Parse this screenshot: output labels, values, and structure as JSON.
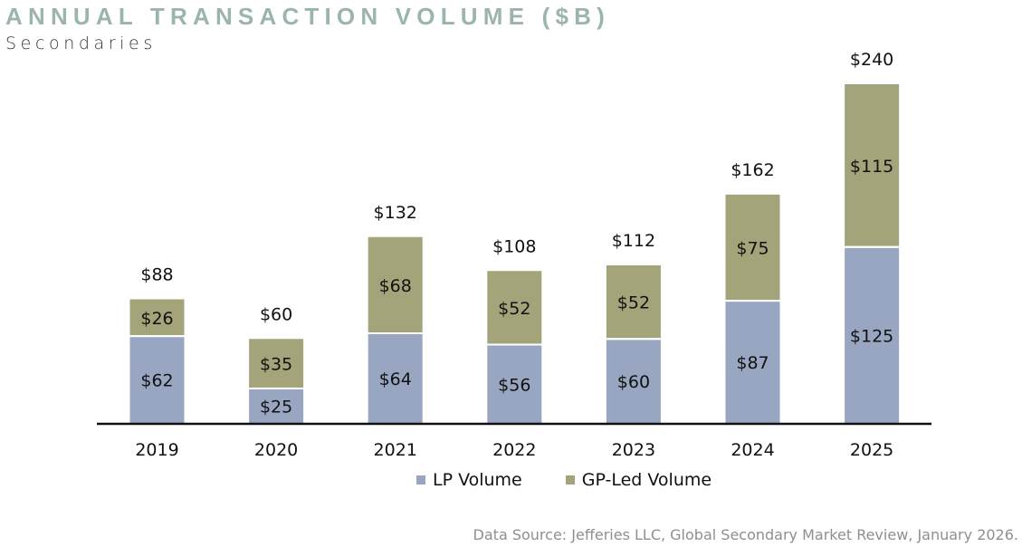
{
  "header": {
    "title": "ANNUAL TRANSACTION VOLUME ($B)",
    "subtitle": "Secondaries"
  },
  "source": "Data Source: Jefferies LLC, Global Secondary Market Review, January 2026.",
  "colors": {
    "lp": "#98a6c1",
    "gp": "#a3a47a",
    "title": "#9bb5ab",
    "axis": "#111111"
  },
  "chart_data": {
    "type": "bar",
    "stacked": true,
    "title": "ANNUAL TRANSACTION VOLUME ($B)",
    "subtitle": "Secondaries",
    "xlabel": "",
    "ylabel": "",
    "ylim": [
      0,
      240
    ],
    "grid": false,
    "legend_position": "bottom",
    "categories": [
      "2019",
      "2020",
      "2021",
      "2022",
      "2023",
      "2024",
      "2025"
    ],
    "series": [
      {
        "name": "LP Volume",
        "values": [
          62,
          25,
          64,
          56,
          60,
          87,
          125
        ],
        "labels": [
          "$62",
          "$25",
          "$64",
          "$56",
          "$60",
          "$87",
          "$125"
        ]
      },
      {
        "name": "GP-Led Volume",
        "values": [
          26,
          35,
          68,
          52,
          52,
          75,
          115
        ],
        "labels": [
          "$26",
          "$35",
          "$68",
          "$52",
          "$52",
          "$75",
          "$115"
        ]
      }
    ],
    "totals": [
      88,
      60,
      132,
      108,
      112,
      162,
      240
    ],
    "total_labels": [
      "$88",
      "$60",
      "$132",
      "$108",
      "$112",
      "$162",
      "$240"
    ]
  }
}
